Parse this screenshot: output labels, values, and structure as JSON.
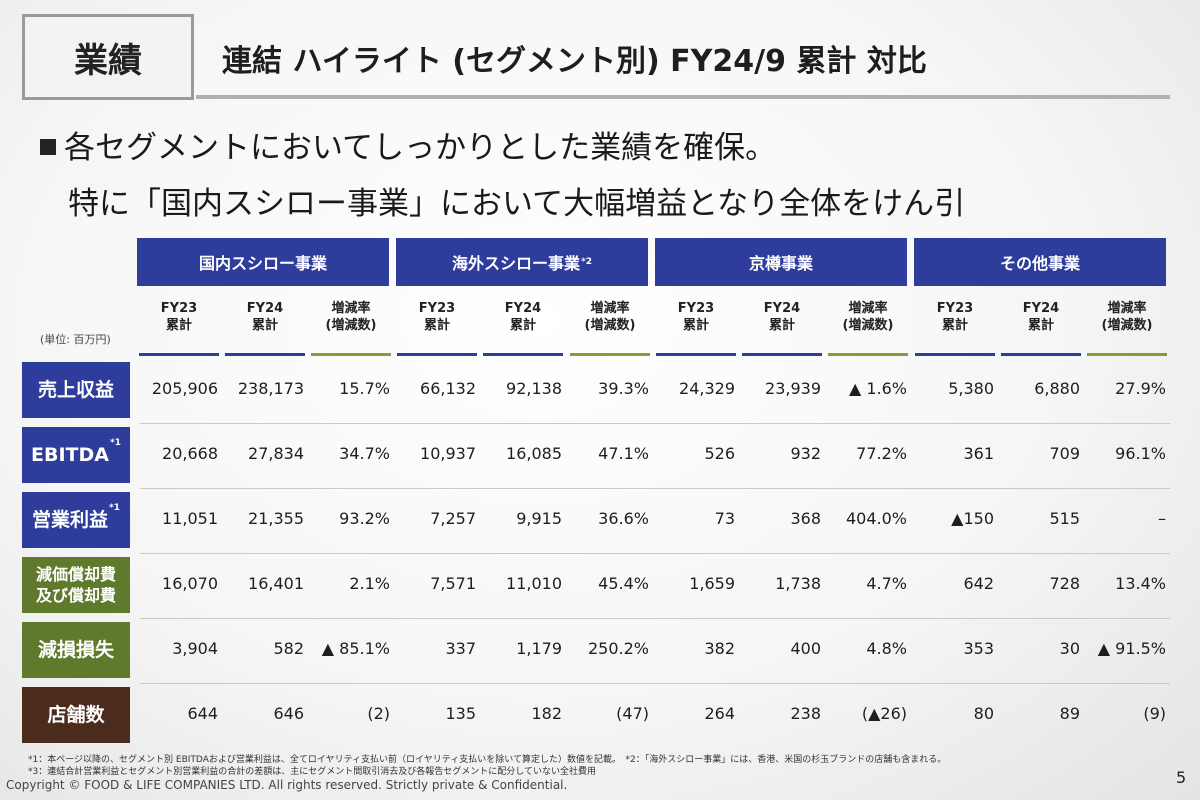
{
  "header": {
    "badge": "業績",
    "title": "連結 ハイライト (セグメント別) FY24/9 累計 対比"
  },
  "lead": {
    "line1": "各セグメントにおいてしっかりとした業績を確保。",
    "line2": "特に「国内スシロー事業」において大幅増益となり全体をけん引"
  },
  "table": {
    "unit": "(単位: 百万円)",
    "segments": [
      {
        "label": "国内スシロー事業",
        "note": ""
      },
      {
        "label": "海外スシロー事業",
        "note": "*2"
      },
      {
        "label": "京樽事業",
        "note": ""
      },
      {
        "label": "その他事業",
        "note": ""
      }
    ],
    "col_headers": {
      "fy23": [
        "FY23",
        "累計"
      ],
      "fy24": [
        "FY24",
        "累計"
      ],
      "chg": [
        "増減率",
        "(増減数)"
      ]
    },
    "rows": [
      {
        "label": "売上収益",
        "note": "",
        "color": "#2e3d9c",
        "values": [
          "205,906",
          "238,173",
          "15.7%",
          "66,132",
          "92,138",
          "39.3%",
          "24,329",
          "23,939",
          "▲ 1.6%",
          "5,380",
          "6,880",
          "27.9%"
        ]
      },
      {
        "label": "EBITDA",
        "note": "*1",
        "color": "#2e3d9c",
        "values": [
          "20,668",
          "27,834",
          "34.7%",
          "10,937",
          "16,085",
          "47.1%",
          "526",
          "932",
          "77.2%",
          "361",
          "709",
          "96.1%"
        ]
      },
      {
        "label": "営業利益",
        "note": "*1",
        "color": "#2e3d9c",
        "values": [
          "11,051",
          "21,355",
          "93.2%",
          "7,257",
          "9,915",
          "36.6%",
          "73",
          "368",
          "404.0%",
          "▲150",
          "515",
          "–"
        ]
      },
      {
        "label": "減価償却費",
        "label2": "及び償却費",
        "note": "",
        "color": "#5f7a2c",
        "values": [
          "16,070",
          "16,401",
          "2.1%",
          "7,571",
          "11,010",
          "45.4%",
          "1,659",
          "1,738",
          "4.7%",
          "642",
          "728",
          "13.4%"
        ]
      },
      {
        "label": "減損損失",
        "note": "",
        "color": "#5f7a2c",
        "values": [
          "3,904",
          "582",
          "▲ 85.1%",
          "337",
          "1,179",
          "250.2%",
          "382",
          "400",
          "4.8%",
          "353",
          "30",
          "▲ 91.5%"
        ]
      },
      {
        "label": "店舗数",
        "note": "",
        "color": "#4a2b1c",
        "values": [
          "644",
          "646",
          "(2)",
          "135",
          "182",
          "(47)",
          "264",
          "238",
          "(▲26)",
          "80",
          "89",
          "(9)"
        ]
      }
    ]
  },
  "footnotes": {
    "fn1": "*1：本ページ以降の、セグメント別 EBITDAおよび営業利益は、全てロイヤリティ支払い前（ロイヤリティ支払いを除いて算定した）数値を記載。　*2：「海外スシロー事業」には、香港、米国の杉玉ブランドの店舗も含まれる。",
    "fn3": "*3：連結合計営業利益とセグメント別営業利益の合計の差額は、主にセグメント間取引消去及び各報告セグメントに配分していない全社費用"
  },
  "footer": {
    "copyright": "Copyright © FOOD & LIFE COMPANIES LTD. All rights reserved. Strictly private & Confidential.",
    "page": "5"
  },
  "colors": {
    "segment_blue": "#2e3d9c",
    "row_blue": "#2e3d9c",
    "row_green": "#5f7a2c",
    "row_brown": "#4a2b1c",
    "underline_olive": "#8a9a3a"
  }
}
